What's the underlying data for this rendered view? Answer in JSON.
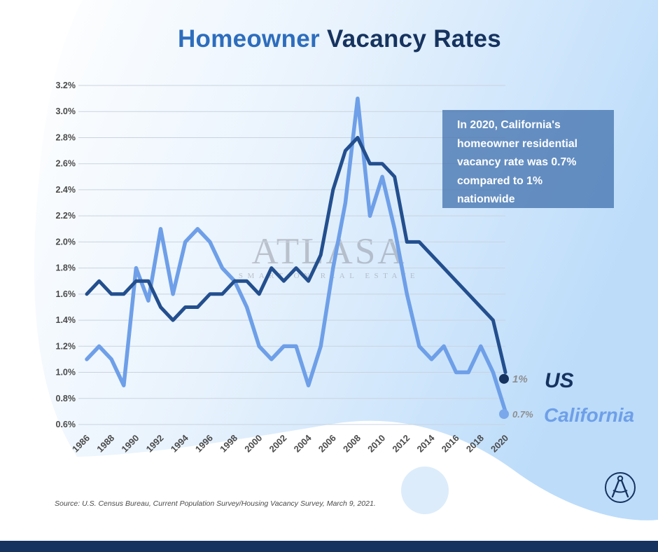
{
  "title": {
    "part1": "Homeowner",
    "part2": "Vacancy Rates"
  },
  "callout": {
    "text": "In 2020, California's homeowner residential vacancy rate was 0.7% compared to 1% nationwide"
  },
  "watermark": {
    "main": "ATLASA",
    "sub": "SMART ON REAL ESTATE"
  },
  "source": "Source: U.S. Census Bureau, Current Population Survey/Housing Vacancy Survey, March 9, 2021.",
  "colors": {
    "us": "#234f8e",
    "us_dot": "#16335f",
    "california": "#6e9fe8",
    "california_dot": "#7aa8ea",
    "grid": "#c9d3df",
    "axis_text": "#4a4a4a"
  },
  "chart_data": {
    "type": "line",
    "title": "Homeowner Vacancy Rates",
    "xlabel": "",
    "ylabel": "",
    "ylim": [
      0.6,
      3.2
    ],
    "yticks": [
      "0.6%",
      "0.8%",
      "1.0%",
      "1.2%",
      "1.4%",
      "1.6%",
      "1.8%",
      "2.0%",
      "2.2%",
      "2.4%",
      "2.6%",
      "2.8%",
      "3.0%",
      "3.2%"
    ],
    "ytick_values": [
      0.6,
      0.8,
      1.0,
      1.2,
      1.4,
      1.6,
      1.8,
      2.0,
      2.2,
      2.4,
      2.6,
      2.8,
      3.0,
      3.2
    ],
    "xticks": [
      "1986",
      "1988",
      "1990",
      "1992",
      "1994",
      "1996",
      "1998",
      "2000",
      "2002",
      "2004",
      "2006",
      "2008",
      "2010",
      "2012",
      "2014",
      "2016",
      "2018",
      "2020"
    ],
    "x": [
      1986,
      1987,
      1988,
      1989,
      1990,
      1991,
      1992,
      1993,
      1994,
      1995,
      1996,
      1997,
      1998,
      1999,
      2000,
      2001,
      2002,
      2003,
      2004,
      2005,
      2006,
      2007,
      2008,
      2009,
      2010,
      2011,
      2012,
      2013,
      2014,
      2015,
      2016,
      2017,
      2018,
      2019,
      2020
    ],
    "series": [
      {
        "name": "US",
        "end_label": "1%",
        "values": [
          1.6,
          1.7,
          1.6,
          1.6,
          1.7,
          1.7,
          1.5,
          1.4,
          1.5,
          1.5,
          1.6,
          1.6,
          1.7,
          1.7,
          1.6,
          1.8,
          1.7,
          1.8,
          1.7,
          1.9,
          2.4,
          2.7,
          2.8,
          2.6,
          2.6,
          2.5,
          2.0,
          2.0,
          1.9,
          1.8,
          1.7,
          1.6,
          1.5,
          1.4,
          1.0
        ],
        "end_value": 0.95
      },
      {
        "name": "California",
        "end_label": "0.7%",
        "values": [
          1.1,
          1.2,
          1.1,
          0.9,
          1.8,
          1.55,
          2.1,
          1.6,
          2.0,
          2.1,
          2.0,
          1.8,
          1.7,
          1.5,
          1.2,
          1.1,
          1.2,
          1.2,
          0.9,
          1.2,
          1.8,
          2.3,
          3.1,
          2.2,
          2.5,
          2.1,
          1.6,
          1.2,
          1.1,
          1.2,
          1.0,
          1.0,
          1.2,
          1.0,
          0.7
        ],
        "end_value": 0.68
      }
    ],
    "legend": "direct labels at line ends (right)"
  }
}
